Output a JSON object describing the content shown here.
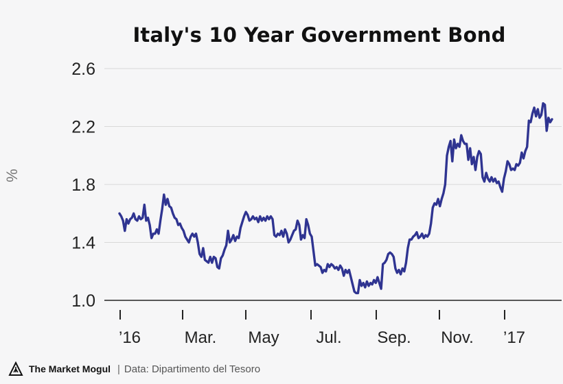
{
  "chart_data": {
    "type": "line",
    "title": "Italy's 10 Year Government Bond",
    "ylabel": "%",
    "xlabel": "",
    "ylim": [
      1.0,
      2.6
    ],
    "yticks": [
      1.0,
      1.4,
      1.8,
      2.2,
      2.6
    ],
    "ytick_labels": [
      "1.0",
      "1.4",
      "1.8",
      "2.2",
      "2.6"
    ],
    "x_ticks": [
      "’16",
      "Mar.",
      "May",
      "Jul.",
      "Sep.",
      "Nov.",
      "’17"
    ],
    "grid": true,
    "line_color": "#2f3491",
    "series": [
      {
        "values": [
          1.6,
          1.58,
          1.55,
          1.48,
          1.56,
          1.53,
          1.56,
          1.57,
          1.6,
          1.56,
          1.55,
          1.58,
          1.56,
          1.57,
          1.66,
          1.55,
          1.57,
          1.52,
          1.43,
          1.46,
          1.46,
          1.49,
          1.46,
          1.55,
          1.63,
          1.73,
          1.66,
          1.7,
          1.65,
          1.64,
          1.6,
          1.57,
          1.56,
          1.52,
          1.53,
          1.5,
          1.48,
          1.44,
          1.42,
          1.4,
          1.44,
          1.46,
          1.44,
          1.46,
          1.4,
          1.32,
          1.3,
          1.36,
          1.28,
          1.27,
          1.26,
          1.3,
          1.26,
          1.3,
          1.29,
          1.23,
          1.22,
          1.29,
          1.31,
          1.35,
          1.38,
          1.48,
          1.4,
          1.42,
          1.45,
          1.41,
          1.44,
          1.43,
          1.5,
          1.54,
          1.58,
          1.61,
          1.59,
          1.55,
          1.56,
          1.58,
          1.56,
          1.57,
          1.54,
          1.58,
          1.55,
          1.57,
          1.55,
          1.58,
          1.56,
          1.58,
          1.56,
          1.45,
          1.44,
          1.46,
          1.45,
          1.48,
          1.44,
          1.49,
          1.46,
          1.4,
          1.42,
          1.45,
          1.48,
          1.49,
          1.55,
          1.52,
          1.42,
          1.45,
          1.43,
          1.56,
          1.52,
          1.46,
          1.44,
          1.34,
          1.24,
          1.25,
          1.24,
          1.23,
          1.19,
          1.21,
          1.2,
          1.25,
          1.23,
          1.25,
          1.24,
          1.22,
          1.23,
          1.21,
          1.24,
          1.22,
          1.17,
          1.21,
          1.19,
          1.21,
          1.16,
          1.11,
          1.06,
          1.05,
          1.05,
          1.14,
          1.1,
          1.12,
          1.09,
          1.13,
          1.1,
          1.12,
          1.11,
          1.14,
          1.12,
          1.16,
          1.12,
          1.08,
          1.25,
          1.26,
          1.28,
          1.32,
          1.33,
          1.32,
          1.3,
          1.22,
          1.19,
          1.21,
          1.18,
          1.22,
          1.2,
          1.26,
          1.36,
          1.42,
          1.42,
          1.44,
          1.45,
          1.47,
          1.43,
          1.44,
          1.46,
          1.43,
          1.45,
          1.44,
          1.46,
          1.53,
          1.64,
          1.67,
          1.66,
          1.7,
          1.65,
          1.7,
          1.74,
          1.8,
          2.0,
          2.06,
          2.1,
          1.96,
          2.11,
          2.05,
          2.08,
          2.06,
          2.14,
          2.1,
          2.08,
          2.08,
          1.97,
          2.05,
          1.94,
          1.99,
          1.9,
          1.99,
          2.03,
          2.01,
          1.85,
          1.82,
          1.88,
          1.84,
          1.82,
          1.85,
          1.82,
          1.84,
          1.81,
          1.82,
          1.78,
          1.75,
          1.84,
          1.89,
          1.96,
          1.94,
          1.9,
          1.91,
          1.9,
          1.94,
          1.93,
          1.95,
          2.02,
          1.98,
          2.03,
          2.06,
          2.24,
          2.23,
          2.29,
          2.33,
          2.27,
          2.32,
          2.26,
          2.28,
          2.36,
          2.35,
          2.17,
          2.26,
          2.23,
          2.25
        ]
      }
    ]
  },
  "footer": {
    "brand": "The Market Mogul",
    "separator": "|",
    "source": "Data: Dipartimento del Tesoro"
  }
}
